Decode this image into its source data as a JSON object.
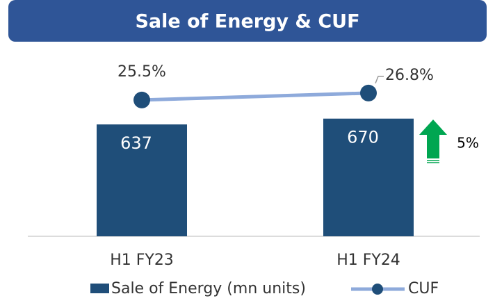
{
  "chart_data": {
    "type": "bar",
    "title": "Sale of Energy & CUF",
    "categories": [
      "H1 FY23",
      "H1 FY24"
    ],
    "series": [
      {
        "name": "Sale of Energy (mn units)",
        "type": "bar",
        "color": "#1f4e79",
        "values": [
          637,
          670
        ]
      },
      {
        "name": "CUF",
        "type": "line",
        "axis": "y2",
        "color": "#8eaadb",
        "marker_color": "#1f4e79",
        "values": [
          25.5,
          26.8
        ],
        "value_labels": [
          "25.5%",
          "26.8%"
        ]
      }
    ],
    "annotations": [
      {
        "text": "5%",
        "color": "#00a651"
      }
    ],
    "legend": "bottom"
  }
}
